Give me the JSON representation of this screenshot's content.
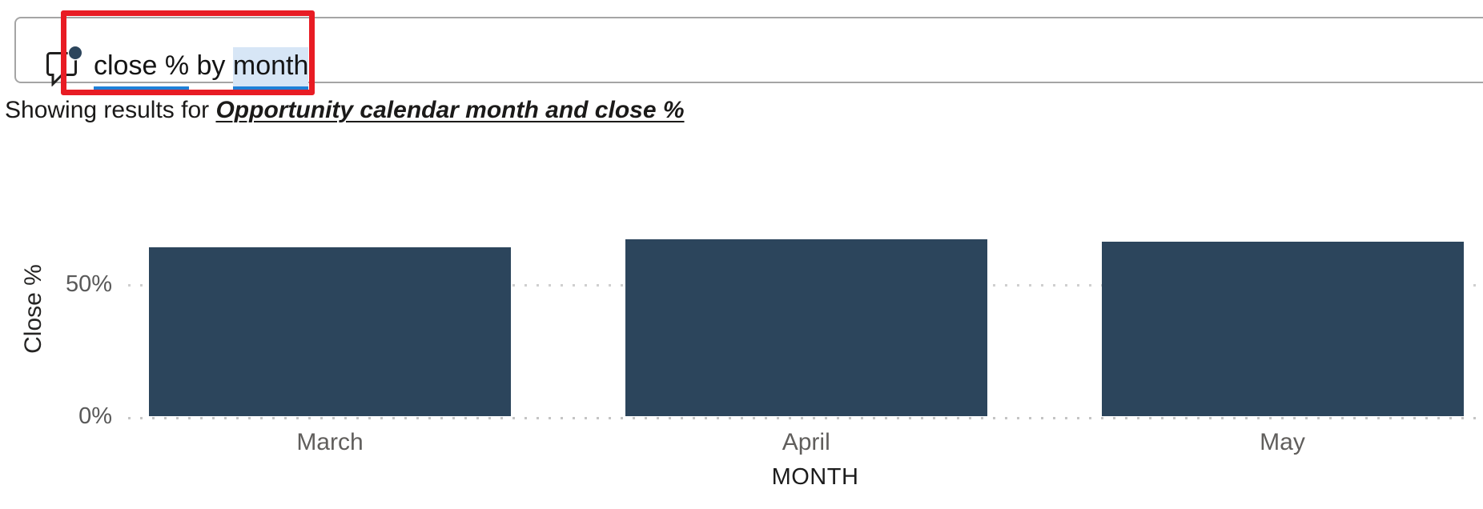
{
  "colors": {
    "bar": "#2C455C",
    "accent_blue_underline": "#1E80D8",
    "selection_highlight": "#D7E6F6",
    "annotation_red": "#E81C24",
    "input_border": "#A5A5A5",
    "grid_dot": "#CFCFCF",
    "axis_label_gray": "#605E5C",
    "text_dark": "#1B1A19"
  },
  "query_bar": {
    "icon": "qna-chat-bubble-icon",
    "segments": [
      {
        "text": "close %"
      },
      {
        "text": " by "
      },
      {
        "text": "month"
      }
    ]
  },
  "results_line": {
    "prefix": "Showing results for ",
    "interpretation": "Opportunity calendar month and close %"
  },
  "chart_data": {
    "type": "bar",
    "categories": [
      "March",
      "April",
      "May"
    ],
    "values": [
      64,
      67,
      66
    ],
    "series_name": "Close %",
    "title": "",
    "xlabel": "MONTH",
    "ylabel": "Close %",
    "ylim": [
      0,
      67
    ],
    "yticks": [
      {
        "label": "0%",
        "value": 0
      },
      {
        "label": "50%",
        "value": 50
      }
    ],
    "grid": "dotted horizontal",
    "legend": "none",
    "bar_color": "#2C455C"
  }
}
